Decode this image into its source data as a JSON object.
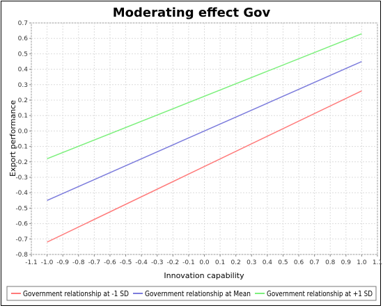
{
  "chart_data": {
    "type": "line",
    "title": "Moderating effect Gov",
    "xlabel": "Innovation capability",
    "ylabel": "Export performance",
    "xlim": [
      -1.1,
      1.1
    ],
    "ylim": [
      -0.8,
      0.7
    ],
    "x_ticks": [
      "-1.1",
      "-1.0",
      "-0.9",
      "-0.8",
      "-0.7",
      "-0.6",
      "-0.5",
      "-0.4",
      "-0.3",
      "-0.2",
      "-0.1",
      "0.0",
      "0.1",
      "0.2",
      "0.3",
      "0.4",
      "0.5",
      "0.6",
      "0.7",
      "0.8",
      "0.9",
      "1.0",
      "1.1"
    ],
    "y_ticks": [
      "0.7",
      "0.6",
      "0.5",
      "0.4",
      "0.3",
      "0.2",
      "0.1",
      "0.0",
      "-0.1",
      "-0.2",
      "-0.3",
      "-0.4",
      "-0.5",
      "-0.6",
      "-0.7",
      "-0.8"
    ],
    "grid": true,
    "legend_position": "bottom",
    "series": [
      {
        "name": "Government relationship at -1 SD",
        "color": "#ff7a7a",
        "x": [
          -1.0,
          1.0
        ],
        "y": [
          -0.72,
          0.26
        ]
      },
      {
        "name": "Government relationship at Mean",
        "color": "#7b7bdc",
        "x": [
          -1.0,
          1.0
        ],
        "y": [
          -0.45,
          0.45
        ]
      },
      {
        "name": "Government relationship at +1 SD",
        "color": "#7cf07c",
        "x": [
          -1.0,
          1.0
        ],
        "y": [
          -0.18,
          0.63
        ]
      }
    ]
  }
}
